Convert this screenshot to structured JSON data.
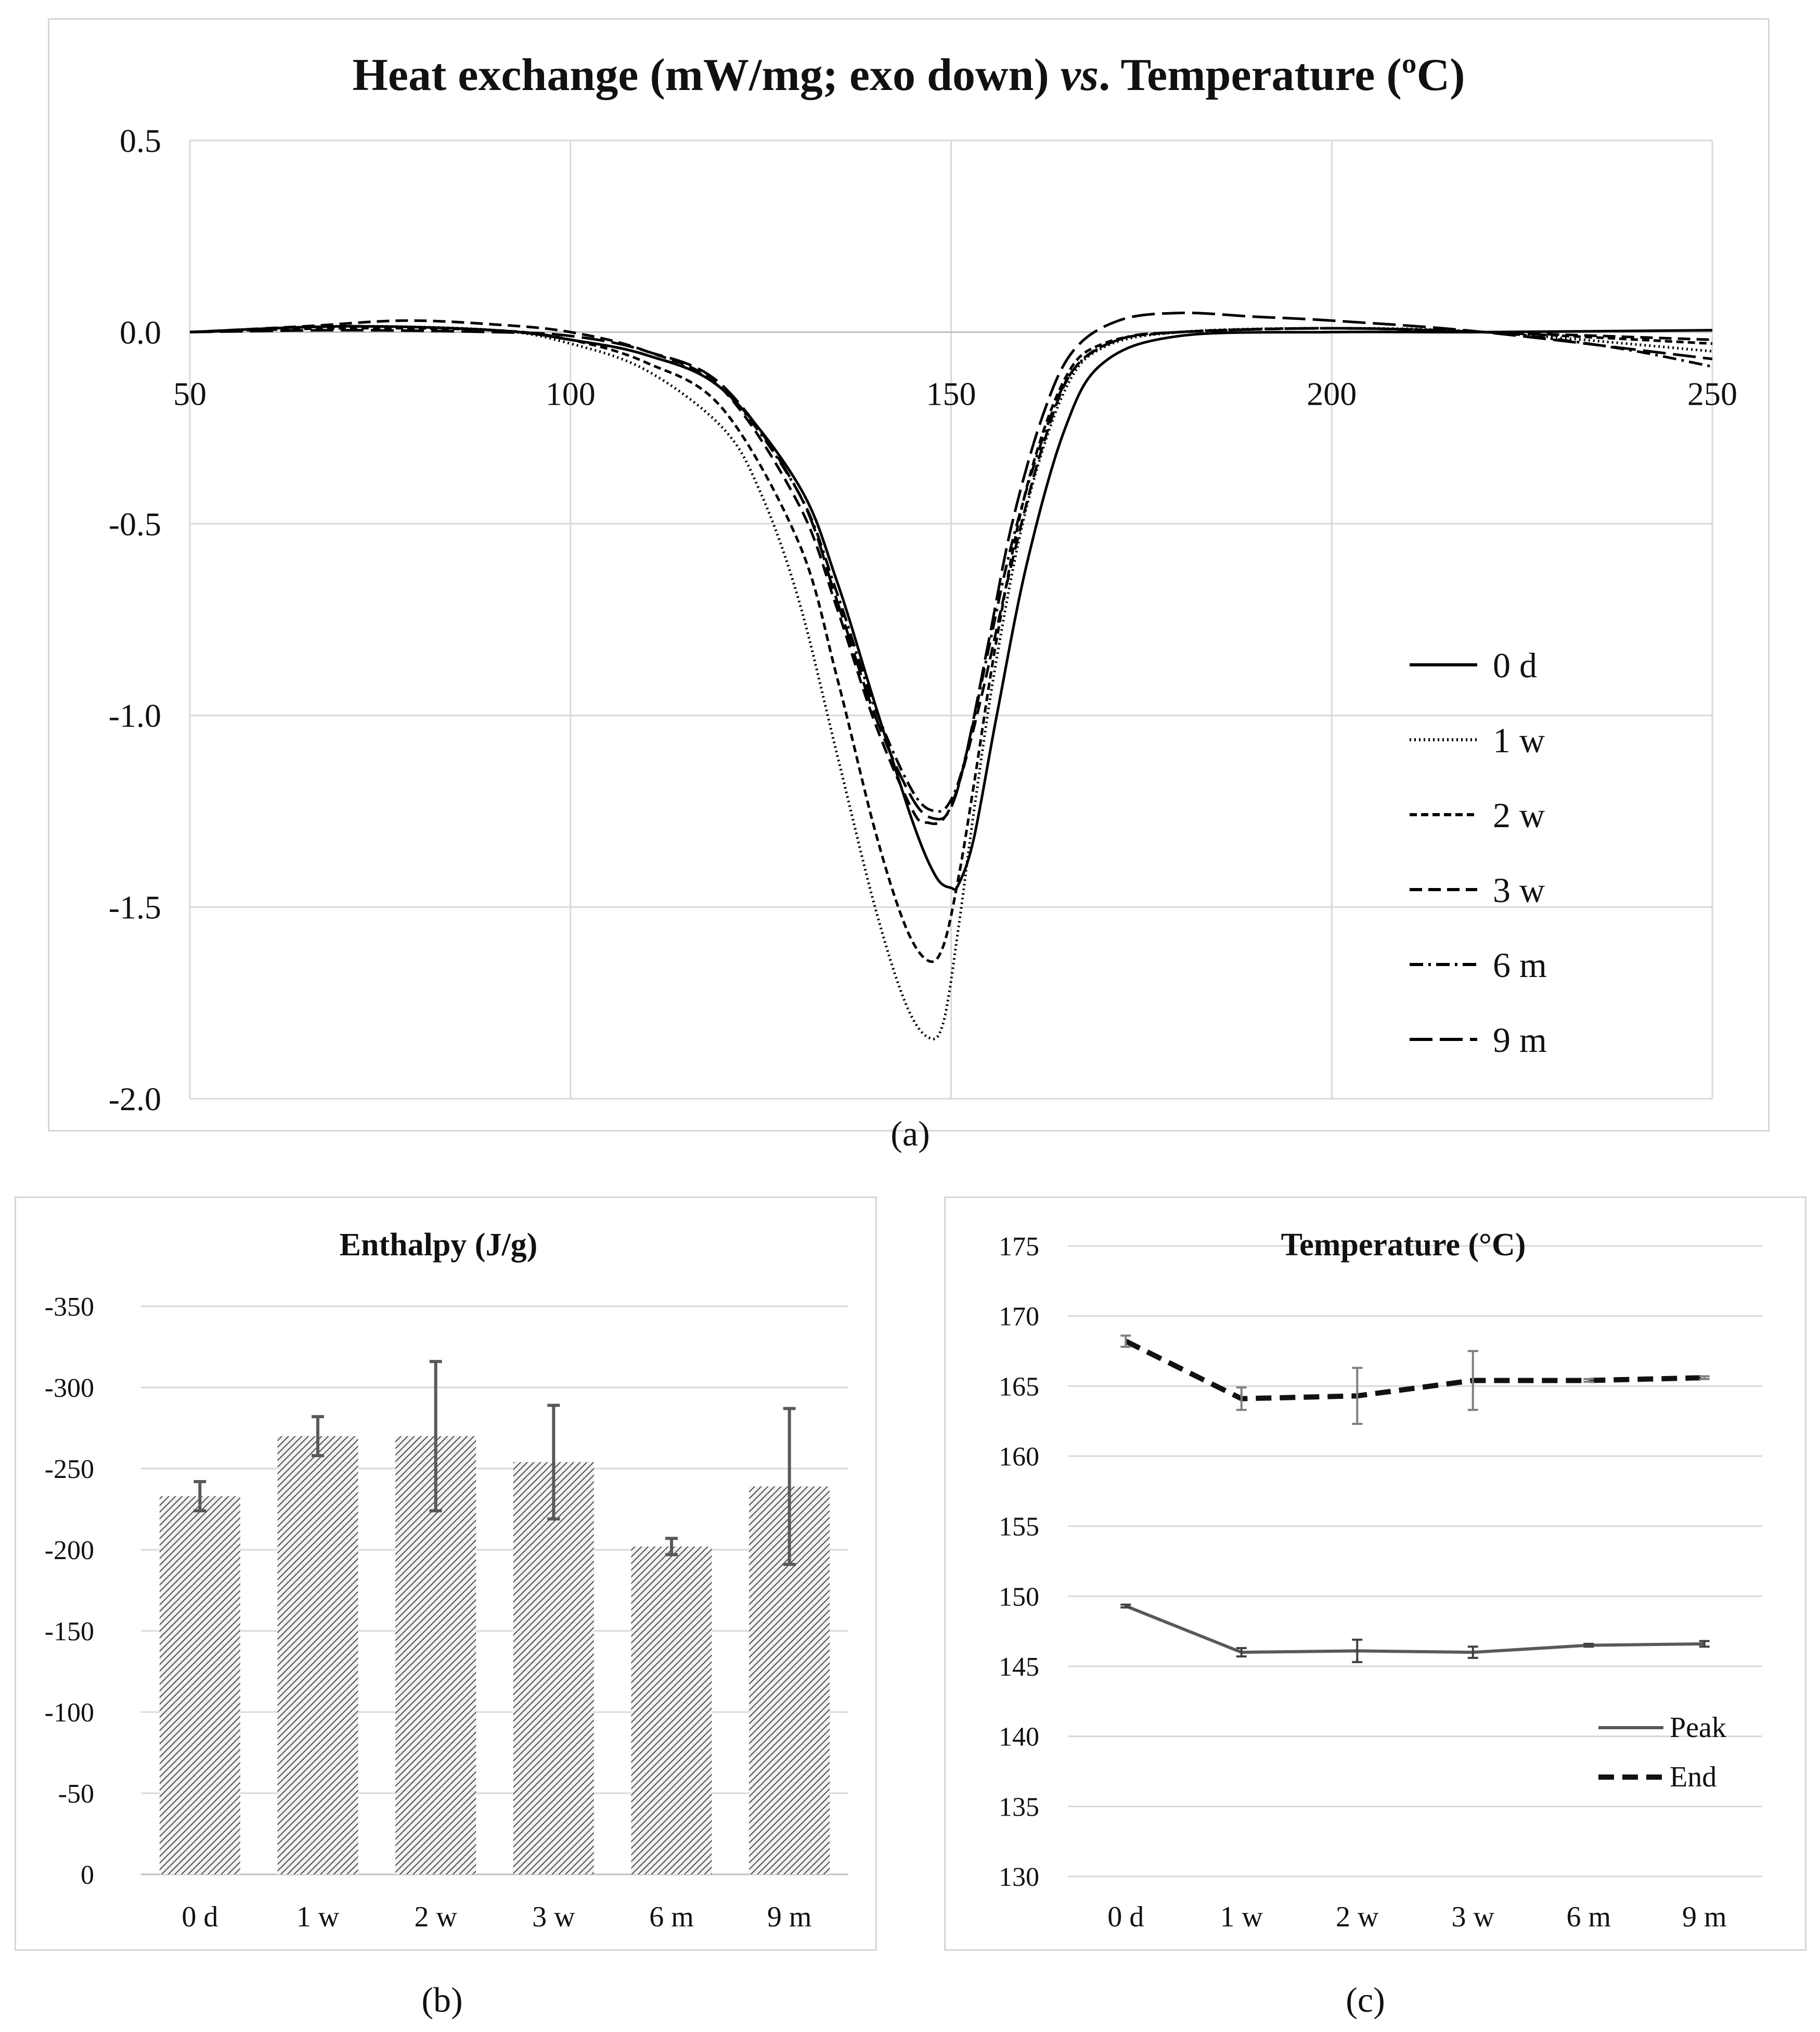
{
  "captions": {
    "a": "(a)",
    "b": "(b)",
    "c": "(c)"
  },
  "chart_data": [
    {
      "id": "a",
      "type": "line",
      "title_main": "Heat exchange (mW/mg; exo down) ",
      "title_italic": "vs",
      "title_end": ". Temperature (ºC)",
      "xlabel": "",
      "ylabel": "",
      "xlim": [
        50,
        250
      ],
      "ylim": [
        -2.0,
        0.5
      ],
      "xticks": [
        50,
        100,
        150,
        200,
        250
      ],
      "yticks": [
        0.5,
        0.0,
        -0.5,
        -1.0,
        -1.5,
        -2.0
      ],
      "ytick_labels": [
        "0.5",
        "0.0",
        "-0.5",
        "-1.0",
        "-1.5",
        "-2.0"
      ],
      "grid": true,
      "legend_position": "bottom-right",
      "series": [
        {
          "name": "0 d",
          "style": "solid",
          "x": [
            50,
            70,
            90,
            100,
            110,
            120,
            130,
            135,
            140,
            145,
            148,
            150,
            151,
            153,
            156,
            160,
            165,
            170,
            180,
            200,
            220,
            250
          ],
          "y": [
            0.0,
            0.015,
            0.005,
            -0.02,
            -0.06,
            -0.15,
            -0.4,
            -0.65,
            -0.97,
            -1.28,
            -1.42,
            -1.45,
            -1.44,
            -1.32,
            -1.0,
            -0.6,
            -0.25,
            -0.08,
            -0.01,
            0.0,
            0.0,
            0.005
          ]
        },
        {
          "name": "1 w",
          "style": "dotted",
          "x": [
            50,
            70,
            90,
            100,
            110,
            120,
            125,
            130,
            135,
            140,
            144,
            147,
            149,
            151,
            153,
            156,
            160,
            165,
            170,
            180,
            200,
            220,
            250
          ],
          "y": [
            0.0,
            0.015,
            0.005,
            -0.03,
            -0.1,
            -0.25,
            -0.42,
            -0.7,
            -1.1,
            -1.5,
            -1.75,
            -1.84,
            -1.8,
            -1.55,
            -1.25,
            -0.85,
            -0.45,
            -0.15,
            -0.04,
            0.0,
            0.01,
            0.0,
            -0.05
          ]
        },
        {
          "name": "2 w",
          "style": "dashed-short",
          "x": [
            50,
            70,
            90,
            100,
            110,
            120,
            130,
            135,
            140,
            144,
            147,
            149,
            151,
            153,
            156,
            160,
            165,
            170,
            180,
            200,
            220,
            250
          ],
          "y": [
            0.0,
            0.01,
            0.005,
            -0.02,
            -0.08,
            -0.2,
            -0.55,
            -0.9,
            -1.3,
            -1.55,
            -1.64,
            -1.6,
            -1.42,
            -1.18,
            -0.8,
            -0.4,
            -0.12,
            -0.03,
            0.0,
            0.01,
            0.0,
            -0.03
          ]
        },
        {
          "name": "3 w",
          "style": "dashed",
          "x": [
            50,
            65,
            78,
            90,
            100,
            110,
            120,
            130,
            135,
            140,
            145,
            147,
            149,
            151,
            154,
            158,
            162,
            166,
            172,
            180,
            200,
            220,
            250
          ],
          "y": [
            0.0,
            0.015,
            0.03,
            0.02,
            0.0,
            -0.05,
            -0.15,
            -0.45,
            -0.72,
            -1.02,
            -1.25,
            -1.28,
            -1.27,
            -1.18,
            -0.95,
            -0.6,
            -0.3,
            -0.1,
            -0.02,
            0.0,
            0.01,
            0.0,
            -0.02
          ]
        },
        {
          "name": "6 m",
          "style": "dash-dot",
          "x": [
            50,
            70,
            90,
            100,
            110,
            120,
            130,
            135,
            140,
            145,
            148,
            150,
            152,
            155,
            158,
            162,
            166,
            172,
            180,
            200,
            220,
            230,
            240,
            250
          ],
          "y": [
            0.0,
            0.015,
            0.005,
            -0.02,
            -0.06,
            -0.15,
            -0.42,
            -0.68,
            -0.98,
            -1.2,
            -1.25,
            -1.22,
            -1.1,
            -0.82,
            -0.55,
            -0.28,
            -0.1,
            -0.02,
            0.0,
            0.01,
            0.0,
            -0.02,
            -0.05,
            -0.09
          ]
        },
        {
          "name": "9 m",
          "style": "long-dash",
          "x": [
            50,
            70,
            90,
            100,
            110,
            120,
            130,
            135,
            140,
            145,
            148,
            150,
            152,
            155,
            158,
            162,
            166,
            172,
            180,
            190,
            200,
            220,
            250
          ],
          "y": [
            0.0,
            0.005,
            0.0,
            -0.01,
            -0.05,
            -0.14,
            -0.42,
            -0.7,
            -1.0,
            -1.22,
            -1.27,
            -1.24,
            -1.1,
            -0.8,
            -0.5,
            -0.22,
            -0.05,
            0.03,
            0.05,
            0.04,
            0.03,
            0.0,
            -0.07
          ]
        }
      ]
    },
    {
      "id": "b",
      "type": "bar",
      "title": "Enthalpy (J/g)",
      "xlabel": "",
      "ylabel": "",
      "categories": [
        "0 d",
        "1 w",
        "2 w",
        "3 w",
        "6 m",
        "9 m"
      ],
      "values": [
        -233,
        -270,
        -270,
        -254,
        -202,
        -239
      ],
      "errors": [
        9,
        12,
        46,
        35,
        5,
        48
      ],
      "ylim": [
        0,
        -350
      ],
      "yticks": [
        -350,
        -300,
        -250,
        -200,
        -150,
        -100,
        -50,
        0
      ],
      "grid": true,
      "bar_fill": "hatched"
    },
    {
      "id": "c",
      "type": "line",
      "title": "Temperature (°C)",
      "xlabel": "",
      "ylabel": "",
      "categories": [
        "0 d",
        "1 w",
        "2 w",
        "3 w",
        "6 m",
        "9 m"
      ],
      "ylim": [
        130,
        175
      ],
      "yticks": [
        175,
        170,
        165,
        160,
        155,
        150,
        145,
        140,
        135,
        130
      ],
      "grid": true,
      "legend_position": "bottom-right",
      "series": [
        {
          "name": "Peak",
          "style": "solid-gray",
          "values": [
            149.3,
            146.0,
            146.1,
            146.0,
            146.5,
            146.6
          ],
          "errors": [
            0.1,
            0.3,
            0.8,
            0.4,
            0.1,
            0.2
          ]
        },
        {
          "name": "End",
          "style": "dashed-black",
          "values": [
            168.2,
            164.1,
            164.3,
            165.4,
            165.4,
            165.6
          ],
          "errors": [
            0.4,
            0.8,
            2.0,
            2.1,
            0.1,
            0.1
          ]
        }
      ]
    }
  ]
}
